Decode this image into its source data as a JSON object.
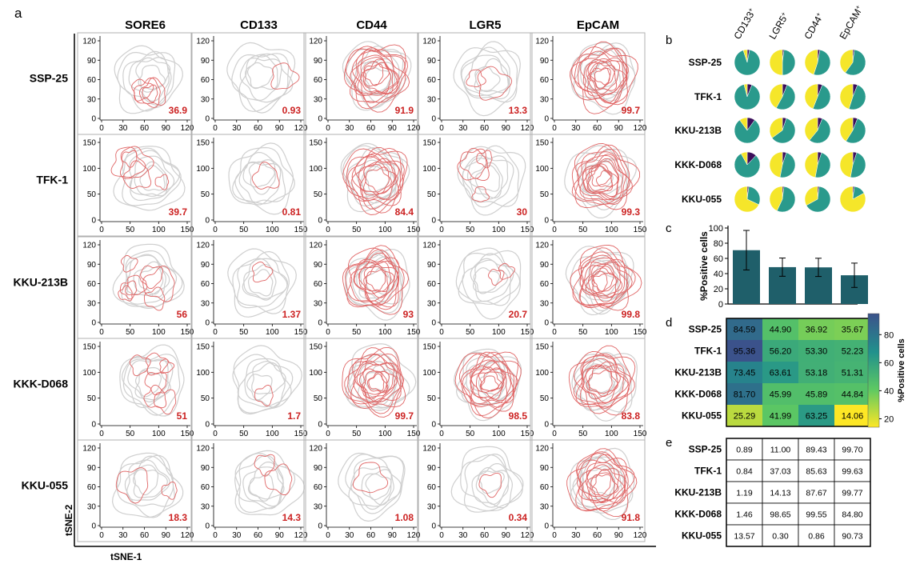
{
  "panel_labels": {
    "a": "a",
    "b": "b",
    "c": "c",
    "d": "d",
    "e": "e"
  },
  "colors": {
    "contour_red": "#e06666",
    "contour_gray": "#cfcfcf",
    "value_red": "#cc2222",
    "bar_teal": "#1f5f6a",
    "pie_purple": "#3b0f5a",
    "pie_teal": "#2a9a8c",
    "pie_yellow": "#f5e62a"
  },
  "chart_data": [
    {
      "type": "scatter",
      "panel": "a",
      "xlabel": "tSNE-1",
      "ylabel": "tSNE-2",
      "markers": [
        "SORE6",
        "CD133",
        "CD44",
        "LGR5",
        "EpCAM"
      ],
      "cell_lines": [
        {
          "name": "SSP-25",
          "x_ticks": [
            "0",
            "30",
            "60",
            "90",
            "120"
          ],
          "y_ticks": [
            "0",
            "30",
            "60",
            "90",
            "120"
          ],
          "values": [
            "36.9",
            "0.93",
            "91.9",
            "13.3",
            "99.7"
          ]
        },
        {
          "name": "TFK-1",
          "x_ticks": [
            "0",
            "50",
            "100",
            "150"
          ],
          "y_ticks": [
            "0",
            "50",
            "100",
            "150"
          ],
          "values": [
            "39.7",
            "0.81",
            "84.4",
            "30",
            "99.3"
          ]
        },
        {
          "name": "KKU-213B",
          "x_ticks": [
            "0",
            "50",
            "100",
            "150"
          ],
          "y_ticks": [
            "0",
            "30",
            "60",
            "90",
            "120"
          ],
          "values": [
            "56",
            "1.37",
            "93",
            "20.7",
            "99.8"
          ]
        },
        {
          "name": "KKK-D068",
          "x_ticks": [
            "0",
            "50",
            "100",
            "150"
          ],
          "y_ticks": [
            "0",
            "50",
            "100",
            "150"
          ],
          "values": [
            "51",
            "1.7",
            "99.7",
            "98.5",
            "83.8"
          ]
        },
        {
          "name": "KKU-055",
          "x_ticks": [
            "0",
            "30",
            "60",
            "90",
            "120"
          ],
          "y_ticks": [
            "0",
            "30",
            "60",
            "90",
            "120"
          ],
          "values": [
            "18.3",
            "14.3",
            "1.08",
            "0.34",
            "91.8"
          ]
        }
      ]
    },
    {
      "type": "pie",
      "panel": "b",
      "columns": [
        {
          "base": "CD133",
          "sup": "+"
        },
        {
          "base": "LGR5",
          "sup": "+"
        },
        {
          "base": "CD44",
          "sup": "+"
        },
        {
          "base": "EpCAM",
          "sup": "+"
        }
      ],
      "rows": [
        {
          "name": "SSP-25",
          "pies": [
            [
              0.03,
              0.92,
              0.05
            ],
            [
              0.02,
              0.48,
              0.5
            ],
            [
              0.03,
              0.52,
              0.45
            ],
            [
              0.02,
              0.58,
              0.4
            ]
          ]
        },
        {
          "name": "TFK-1",
          "pies": [
            [
              0.06,
              0.9,
              0.04
            ],
            [
              0.06,
              0.52,
              0.42
            ],
            [
              0.06,
              0.5,
              0.44
            ],
            [
              0.06,
              0.49,
              0.45
            ]
          ]
        },
        {
          "name": "KKU-213B",
          "pies": [
            [
              0.1,
              0.8,
              0.1
            ],
            [
              0.05,
              0.6,
              0.35
            ],
            [
              0.06,
              0.55,
              0.39
            ],
            [
              0.06,
              0.53,
              0.41
            ]
          ]
        },
        {
          "name": "KKK-D068",
          "pies": [
            [
              0.12,
              0.8,
              0.08
            ],
            [
              0.05,
              0.48,
              0.47
            ],
            [
              0.05,
              0.48,
              0.47
            ],
            [
              0.05,
              0.48,
              0.47
            ]
          ]
        },
        {
          "name": "KKU-055",
          "pies": [
            [
              0.02,
              0.3,
              0.68
            ],
            [
              0.02,
              0.55,
              0.43
            ],
            [
              0.02,
              0.65,
              0.33
            ],
            [
              0.02,
              0.15,
              0.83
            ]
          ]
        }
      ]
    },
    {
      "type": "bar",
      "panel": "c",
      "ylabel": "%Positive cells",
      "ylim": [
        0,
        100
      ],
      "y_ticks": [
        "0",
        "20",
        "40",
        "60",
        "80",
        "100"
      ],
      "values": [
        70.8,
        48.5,
        48.2,
        37.8
      ],
      "error": [
        26,
        12,
        12,
        16
      ]
    },
    {
      "type": "heatmap",
      "panel": "d",
      "rows": [
        "SSP-25",
        "TFK-1",
        "KKU-213B",
        "KKK-D068",
        "KKU-055"
      ],
      "values": [
        [
          "84.59",
          "44.90",
          "36.92",
          "35.67"
        ],
        [
          "95.36",
          "56.20",
          "53.30",
          "52.23"
        ],
        [
          "73.45",
          "63.61",
          "53.18",
          "51.31"
        ],
        [
          "81.70",
          "45.99",
          "45.89",
          "44.84"
        ],
        [
          "25.29",
          "41.99",
          "63.25",
          "14.06"
        ]
      ],
      "colorbar": {
        "label": "%Positive cells",
        "ticks": [
          "80",
          "60",
          "40",
          "20"
        ],
        "min": 14,
        "max": 95
      }
    },
    {
      "type": "table",
      "panel": "e",
      "rows": [
        "SSP-25",
        "TFK-1",
        "KKU-213B",
        "KKK-D068",
        "KKU-055"
      ],
      "values": [
        [
          "0.89",
          "11.00",
          "89.43",
          "99.70"
        ],
        [
          "0.84",
          "37.03",
          "85.63",
          "99.63"
        ],
        [
          "1.19",
          "14.13",
          "87.67",
          "99.77"
        ],
        [
          "1.46",
          "98.65",
          "99.55",
          "84.80"
        ],
        [
          "13.57",
          "0.30",
          "0.86",
          "90.73"
        ]
      ]
    }
  ]
}
